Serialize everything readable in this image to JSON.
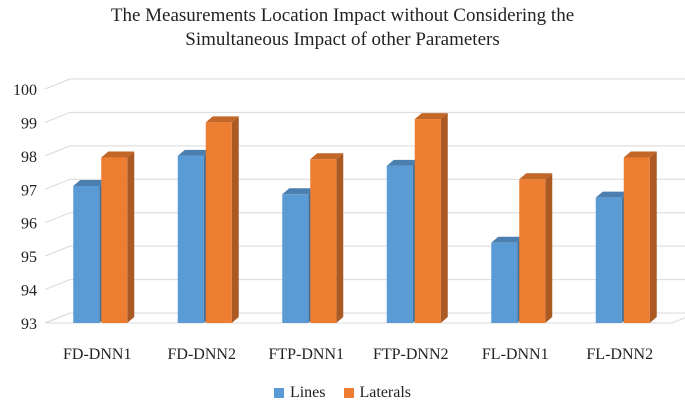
{
  "chart_data": {
    "type": "bar",
    "title_lines": [
      "The Measurements Location Impact without Considering the",
      "Simultaneous Impact of other Parameters"
    ],
    "categories": [
      "FD-DNN1",
      "FD-DNN2",
      "FTP-DNN1",
      "FTP-DNN2",
      "FL-DNN1",
      "FL-DNN2"
    ],
    "series": [
      {
        "name": "Lines",
        "color": "#5B9BD5",
        "values": [
          97.1,
          98.0,
          96.85,
          97.7,
          95.4,
          96.75
        ]
      },
      {
        "name": "Laterals",
        "color": "#ED7D31",
        "values": [
          97.95,
          99.0,
          97.9,
          99.1,
          97.3,
          97.95
        ]
      }
    ],
    "ylim": [
      93,
      100
    ],
    "yticks": [
      93,
      94,
      95,
      96,
      97,
      98,
      99,
      100
    ],
    "grid": true,
    "legend_position": "bottom",
    "xlabel": "",
    "ylabel": ""
  }
}
